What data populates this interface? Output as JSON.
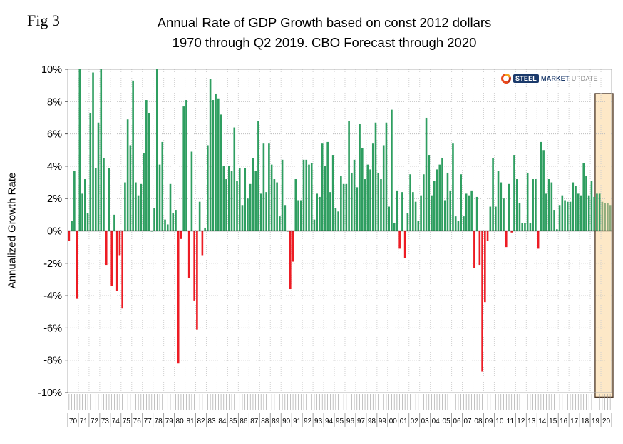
{
  "figure_label": "Fig 3",
  "logo": {
    "steel": "STEEL",
    "market": "MARKET",
    "update": "UPDATE"
  },
  "chart_data": {
    "type": "bar",
    "title": "Annual Rate of GDP Growth based on const 2012 dollars",
    "subtitle": "1970 through Q2 2019. CBO Forecast through 2020",
    "ylabel": "Annualized Growth Rate",
    "ylim": [
      -10,
      10
    ],
    "y_tick_labels": [
      "10%",
      "8%",
      "6%",
      "4%",
      "2%",
      "0%",
      "-2%",
      "-4%",
      "-6%",
      "-8%",
      "-10%"
    ],
    "grid": true,
    "legend": "none",
    "bar_unit": "percent, quarterly annualized rate",
    "colors": {
      "positive": "#2E9E60",
      "negative": "#ED1C24",
      "forecast": "#8FAC7C",
      "forecast_box_fill": "#FDE8C7",
      "forecast_box_border": "#4a3424"
    },
    "forecast_box_start_index": 198,
    "forecast_color_start_index": 200,
    "years": [
      {
        "label": "70",
        "values": [
          -0.6,
          0.6,
          3.7,
          -4.2
        ]
      },
      {
        "label": "71",
        "values": [
          10.0,
          2.3,
          3.2,
          1.1
        ]
      },
      {
        "label": "72",
        "values": [
          7.3,
          9.8,
          3.9,
          6.7
        ]
      },
      {
        "label": "73",
        "values": [
          10.0,
          4.5,
          -2.1,
          3.9
        ]
      },
      {
        "label": "74",
        "values": [
          -3.4,
          1.0,
          -3.7,
          -1.5
        ]
      },
      {
        "label": "75",
        "values": [
          -4.8,
          3.0,
          6.9,
          5.3
        ]
      },
      {
        "label": "76",
        "values": [
          9.3,
          3.0,
          2.2,
          2.9
        ]
      },
      {
        "label": "77",
        "values": [
          4.8,
          8.1,
          7.3,
          0.0
        ]
      },
      {
        "label": "78",
        "values": [
          1.4,
          10.0,
          4.1,
          5.5
        ]
      },
      {
        "label": "79",
        "values": [
          0.7,
          0.4,
          2.9,
          1.1
        ]
      },
      {
        "label": "80",
        "values": [
          1.3,
          -8.2,
          -0.5,
          7.7
        ]
      },
      {
        "label": "81",
        "values": [
          8.1,
          -2.9,
          4.9,
          -4.3
        ]
      },
      {
        "label": "82",
        "values": [
          -6.1,
          1.8,
          -1.5,
          0.2
        ]
      },
      {
        "label": "83",
        "values": [
          5.3,
          9.4,
          8.1,
          8.5
        ]
      },
      {
        "label": "84",
        "values": [
          8.2,
          7.2,
          4.0,
          3.2
        ]
      },
      {
        "label": "85",
        "values": [
          4.0,
          3.7,
          6.4,
          3.1
        ]
      },
      {
        "label": "86",
        "values": [
          3.9,
          1.6,
          3.9,
          2.0
        ]
      },
      {
        "label": "87",
        "values": [
          2.9,
          4.5,
          3.7,
          6.8
        ]
      },
      {
        "label": "88",
        "values": [
          2.3,
          5.4,
          2.4,
          5.4
        ]
      },
      {
        "label": "89",
        "values": [
          4.1,
          3.2,
          3.0,
          0.9
        ]
      },
      {
        "label": "90",
        "values": [
          4.4,
          1.6,
          0.0,
          -3.6
        ]
      },
      {
        "label": "91",
        "values": [
          -1.9,
          3.2,
          1.9,
          1.9
        ]
      },
      {
        "label": "92",
        "values": [
          4.4,
          4.4,
          4.1,
          4.2
        ]
      },
      {
        "label": "93",
        "values": [
          0.7,
          2.3,
          2.1,
          5.4
        ]
      },
      {
        "label": "94",
        "values": [
          4.0,
          5.5,
          2.4,
          4.7
        ]
      },
      {
        "label": "95",
        "values": [
          1.4,
          1.2,
          3.4,
          2.9
        ]
      },
      {
        "label": "96",
        "values": [
          2.9,
          6.8,
          3.6,
          4.4
        ]
      },
      {
        "label": "97",
        "values": [
          2.7,
          6.6,
          5.1,
          3.2
        ]
      },
      {
        "label": "98",
        "values": [
          4.1,
          3.8,
          5.4,
          6.7
        ]
      },
      {
        "label": "99",
        "values": [
          3.6,
          3.2,
          5.3,
          6.7
        ]
      },
      {
        "label": "00",
        "values": [
          1.5,
          7.5,
          0.5,
          2.5
        ]
      },
      {
        "label": "01",
        "values": [
          -1.1,
          2.4,
          -1.7,
          1.1
        ]
      },
      {
        "label": "02",
        "values": [
          3.5,
          2.4,
          1.8,
          0.6
        ]
      },
      {
        "label": "03",
        "values": [
          2.2,
          3.5,
          7.0,
          4.7
        ]
      },
      {
        "label": "04",
        "values": [
          2.2,
          3.1,
          3.8,
          4.1
        ]
      },
      {
        "label": "05",
        "values": [
          4.5,
          1.9,
          3.6,
          2.5
        ]
      },
      {
        "label": "06",
        "values": [
          5.4,
          0.9,
          0.6,
          3.5
        ]
      },
      {
        "label": "07",
        "values": [
          0.9,
          2.3,
          2.2,
          2.5
        ]
      },
      {
        "label": "08",
        "values": [
          -2.3,
          2.1,
          -2.1,
          -8.7
        ]
      },
      {
        "label": "09",
        "values": [
          -4.4,
          -0.6,
          1.5,
          4.5
        ]
      },
      {
        "label": "10",
        "values": [
          1.5,
          3.7,
          3.0,
          2.0
        ]
      },
      {
        "label": "11",
        "values": [
          -1.0,
          2.9,
          -0.1,
          4.7
        ]
      },
      {
        "label": "12",
        "values": [
          3.2,
          1.7,
          0.5,
          0.5
        ]
      },
      {
        "label": "13",
        "values": [
          3.6,
          0.5,
          3.2,
          3.2
        ]
      },
      {
        "label": "14",
        "values": [
          -1.1,
          5.5,
          5.0,
          2.3
        ]
      },
      {
        "label": "15",
        "values": [
          3.2,
          3.0,
          1.3,
          0.1
        ]
      },
      {
        "label": "16",
        "values": [
          1.6,
          2.2,
          1.9,
          1.8
        ]
      },
      {
        "label": "17",
        "values": [
          1.8,
          3.0,
          2.8,
          2.3
        ]
      },
      {
        "label": "18",
        "values": [
          2.2,
          4.2,
          3.4,
          2.2
        ]
      },
      {
        "label": "19",
        "values": [
          3.1,
          2.1,
          2.3,
          2.3
        ]
      },
      {
        "label": "20",
        "values": [
          1.8,
          1.7,
          1.7,
          1.6
        ]
      }
    ]
  }
}
